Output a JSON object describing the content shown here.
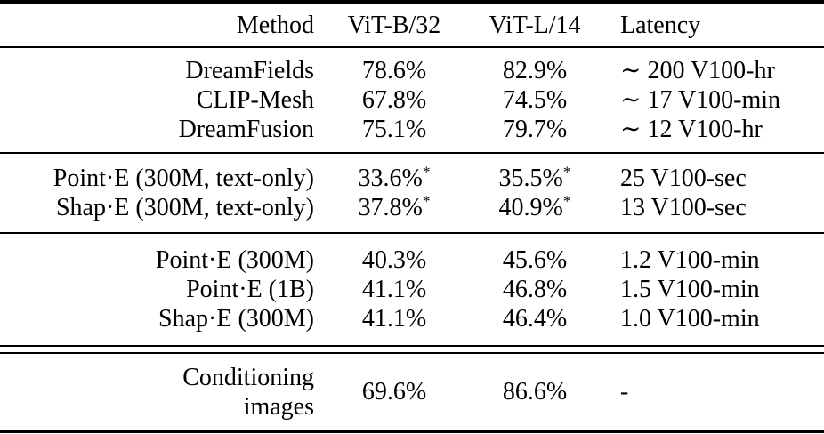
{
  "page": {
    "background_color": "#ffffff",
    "text_color": "#000000"
  },
  "table": {
    "headers": {
      "method": "Method",
      "vitb32": "ViT-B/32",
      "vitl14": "ViT-L/14",
      "latency": "Latency"
    },
    "groups": [
      {
        "rows": [
          {
            "method": "DreamFields",
            "vitb32": "78.6%",
            "vitl14": "82.9%",
            "latency": "∼ 200 V100-hr"
          },
          {
            "method": "CLIP-Mesh",
            "vitb32": "67.8%",
            "vitl14": "74.5%",
            "latency": "∼ 17 V100-min"
          },
          {
            "method": "DreamFusion",
            "vitb32": "75.1%",
            "vitl14": "79.7%",
            "latency": "∼ 12 V100-hr"
          }
        ]
      },
      {
        "rows": [
          {
            "method": "Point·E (300M, text-only)",
            "vitb32": "33.6%",
            "vitb32_sup": "*",
            "vitl14": "35.5%",
            "vitl14_sup": "*",
            "latency": "25 V100-sec"
          },
          {
            "method": "Shap·E (300M, text-only)",
            "vitb32": "37.8%",
            "vitb32_sup": "*",
            "vitl14": "40.9%",
            "vitl14_sup": "*",
            "latency": "13 V100-sec"
          }
        ]
      },
      {
        "rows": [
          {
            "method": "Point·E (300M)",
            "vitb32": "40.3%",
            "vitl14": "45.6%",
            "latency": "1.2 V100-min"
          },
          {
            "method": "Point·E (1B)",
            "vitb32": "41.1%",
            "vitl14": "46.8%",
            "latency": "1.5 V100-min"
          },
          {
            "method": "Shap·E (300M)",
            "vitb32": "41.1%",
            "vitl14": "46.4%",
            "latency": "1.0 V100-min"
          }
        ]
      },
      {
        "rows": [
          {
            "method": "Conditioning\nimages",
            "vitb32": "69.6%",
            "vitl14": "86.6%",
            "latency": "-"
          }
        ]
      }
    ]
  }
}
